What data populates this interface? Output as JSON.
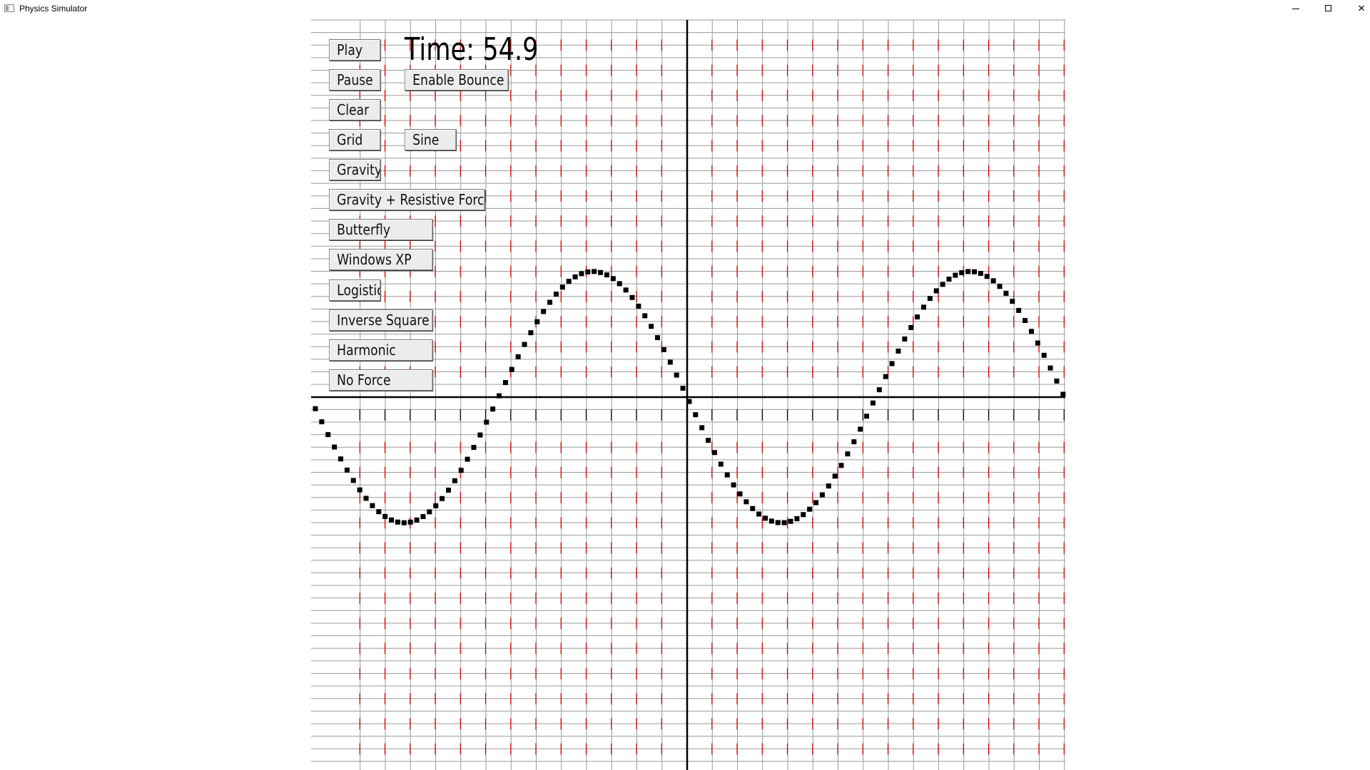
{
  "window": {
    "title": "Physics Simulator",
    "controls": {
      "minimize": "minimize-icon",
      "maximize": "maximize-icon",
      "close": "close-icon"
    }
  },
  "status": {
    "time_label": "Time: 54.9"
  },
  "buttons": {
    "play": "Play",
    "pause": "Pause",
    "clear": "Clear",
    "grid": "Grid",
    "gravity": "Gravity",
    "gravity_resistive": "Gravity + Resistive Force",
    "butterfly": "Butterfly",
    "windows_xp": "Windows XP",
    "logistic": "Logistic",
    "inverse_square": "Inverse Square",
    "harmonic": "Harmonic",
    "no_force": "No Force",
    "enable_bounce": "Enable Bounce",
    "sine": "Sine"
  },
  "plot": {
    "grid_enabled": true,
    "function": "sine",
    "amplitude": 5,
    "period": 15,
    "x_range": [
      -15,
      15
    ],
    "y_range": [
      -15,
      15
    ],
    "colors": {
      "grid_line": "#9a9a9a",
      "tick_mark": "#e00000",
      "axis": "#000000",
      "point": "#000000"
    }
  }
}
